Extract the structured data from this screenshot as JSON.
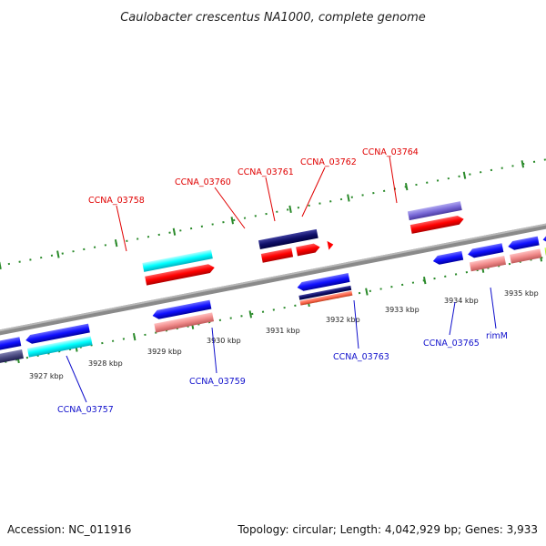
{
  "title": "Caulobacter crescentus NA1000, complete genome",
  "footer": {
    "accession": "Accession: NC_011916",
    "topology": "Topology: circular; Length: 4,042,929 bp; Genes: 3,933"
  },
  "colors": {
    "backbone": "#8a8a8a",
    "tick": "#2a8a2a",
    "label_upper": "#e00000",
    "label_lower": "#1010cc"
  },
  "kbp_labels": [
    "3927 kbp",
    "3928 kbp",
    "3929 kbp",
    "3930 kbp",
    "3931 kbp",
    "3932 kbp",
    "3933 kbp",
    "3934 kbp",
    "3935 kbp"
  ],
  "gene_labels_upper": [
    "CCNA_03758",
    "CCNA_03760",
    "CCNA_03761",
    "CCNA_03762",
    "CCNA_03764"
  ],
  "gene_labels_lower": [
    "CCNA_03757",
    "CCNA_03759",
    "CCNA_03763",
    "CCNA_03765",
    "rimM"
  ]
}
